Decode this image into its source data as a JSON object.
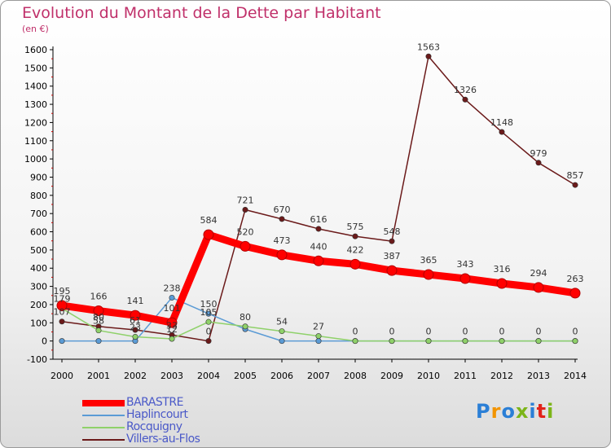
{
  "title": "Evolution du Montant de la Dette par Habitant",
  "unit_label": "(en €)",
  "logo": {
    "text": "Proxiti",
    "colors": [
      "#2b7fd6",
      "#f29400",
      "#2b7fd6",
      "#7cb518",
      "#2b7fd6",
      "#e2231a",
      "#7cb518"
    ]
  },
  "chart_data": {
    "type": "line",
    "title": "Evolution du Montant de la Dette par Habitant",
    "ylabel": "(en €)",
    "xlabel": "",
    "ylim": [
      -100,
      1600
    ],
    "yticks": [
      -100,
      0,
      100,
      200,
      300,
      400,
      500,
      600,
      700,
      800,
      900,
      1000,
      1100,
      1200,
      1300,
      1400,
      1500,
      1600
    ],
    "categories": [
      "2000",
      "2001",
      "2002",
      "2003",
      "2004",
      "2005",
      "2006",
      "2007",
      "2008",
      "2009",
      "2010",
      "2011",
      "2012",
      "2013",
      "2014"
    ],
    "series": [
      {
        "name": "BARASTRE",
        "color": "#ff0000",
        "emphasis": true,
        "values": [
          195,
          166,
          141,
          101,
          584,
          520,
          473,
          440,
          422,
          387,
          365,
          343,
          316,
          294,
          263
        ],
        "labels": [
          "195",
          "166",
          "141",
          "101",
          "584",
          "520",
          "473",
          "440",
          "422",
          "387",
          "365",
          "343",
          "316",
          "294",
          "263"
        ]
      },
      {
        "name": "Haplincourt",
        "color": "#5b9bd5",
        "values": [
          0,
          0,
          0,
          238,
          150,
          65,
          0,
          0,
          0,
          0,
          0,
          0,
          0,
          0,
          0
        ],
        "labels": [
          "",
          "",
          "",
          "238",
          "150",
          "",
          "",
          "",
          "",
          "",
          "",
          "",
          "",
          "",
          ""
        ]
      },
      {
        "name": "Rocquigny",
        "color": "#8fd16a",
        "values": [
          179,
          58,
          23,
          12,
          105,
          80,
          54,
          27,
          0,
          0,
          0,
          0,
          0,
          0,
          0
        ],
        "labels": [
          "179",
          "58",
          "23",
          "12",
          "105",
          "80",
          "54",
          "27",
          "0",
          "0",
          "0",
          "0",
          "0",
          "0",
          "0"
        ]
      },
      {
        "name": "Villers-au-Flos",
        "color": "#6b1a1a",
        "values": [
          107,
          80,
          61,
          33,
          0,
          721,
          670,
          616,
          575,
          548,
          1563,
          1326,
          1148,
          979,
          857
        ],
        "labels": [
          "107",
          "80",
          "61",
          "33",
          "0",
          "721",
          "670",
          "616",
          "575",
          "548",
          "1563",
          "1326",
          "1148",
          "979",
          "857"
        ]
      }
    ]
  }
}
